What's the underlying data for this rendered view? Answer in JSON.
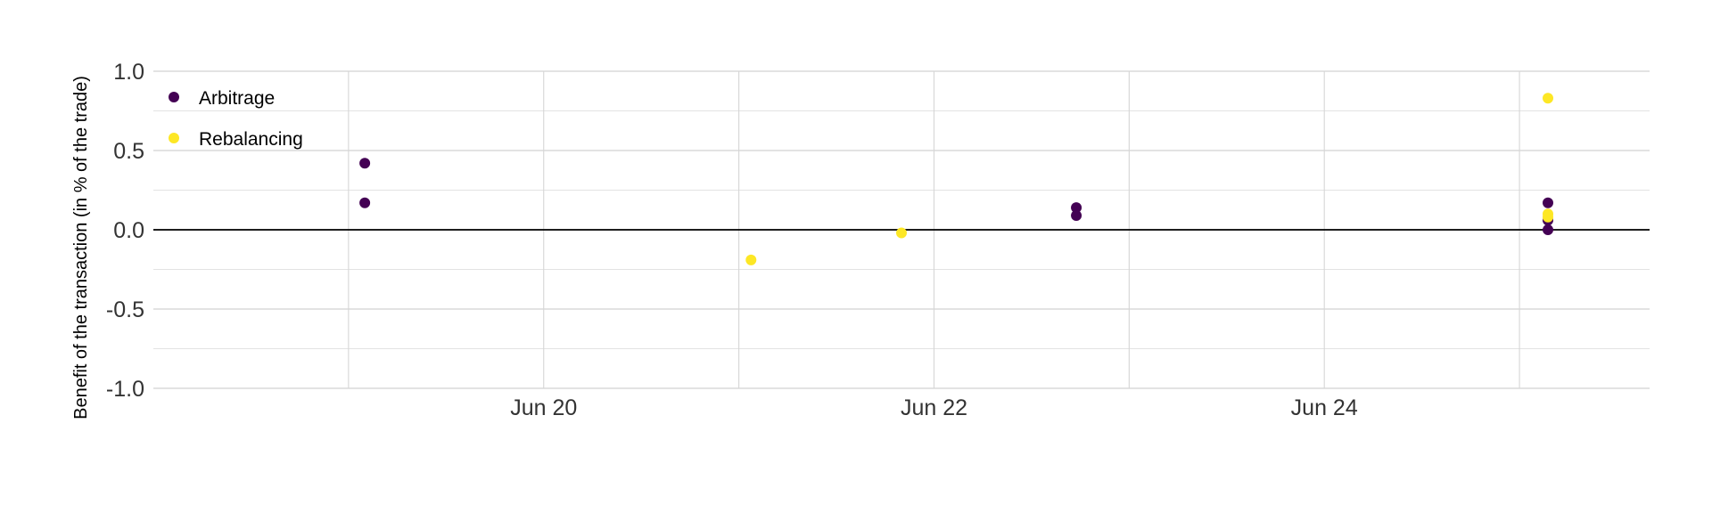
{
  "chart_data": {
    "type": "scatter",
    "title": "",
    "xlabel": "",
    "ylabel": "Benefit of the transaction (in % of the trade)",
    "xlim": [
      "2023-06-18 00:00",
      "2023-06-25 16:00"
    ],
    "ylim": [
      -1.0,
      1.0
    ],
    "x_ticks": [
      "2023-06-20",
      "2023-06-22",
      "2023-06-24"
    ],
    "x_tick_labels": [
      "Jun 20",
      "Jun 22",
      "Jun 24"
    ],
    "y_ticks": [
      -1.0,
      -0.5,
      0.0,
      0.5,
      1.0
    ],
    "y_tick_labels": [
      "-1.0",
      "-0.5",
      "0.0",
      "0.5",
      "1.0"
    ],
    "grid": true,
    "reference_line_y": 0,
    "legend_position": "top-left",
    "series": [
      {
        "name": "Arbitrage",
        "color": "#440154",
        "points": [
          {
            "x": "2023-06-19 02:00",
            "y": 0.42
          },
          {
            "x": "2023-06-19 02:00",
            "y": 0.17
          },
          {
            "x": "2023-06-22 17:30",
            "y": 0.14
          },
          {
            "x": "2023-06-22 17:30",
            "y": 0.09
          },
          {
            "x": "2023-06-25 03:30",
            "y": 0.17
          },
          {
            "x": "2023-06-25 03:30",
            "y": 0.06
          },
          {
            "x": "2023-06-25 03:30",
            "y": 0.0
          }
        ]
      },
      {
        "name": "Rebalancing",
        "color": "#fde725",
        "points": [
          {
            "x": "2023-06-21 01:30",
            "y": -0.19
          },
          {
            "x": "2023-06-21 20:00",
            "y": -0.02
          },
          {
            "x": "2023-06-25 03:30",
            "y": 0.83
          },
          {
            "x": "2023-06-25 03:30",
            "y": 0.1
          },
          {
            "x": "2023-06-25 03:30",
            "y": 0.08
          }
        ]
      }
    ]
  }
}
